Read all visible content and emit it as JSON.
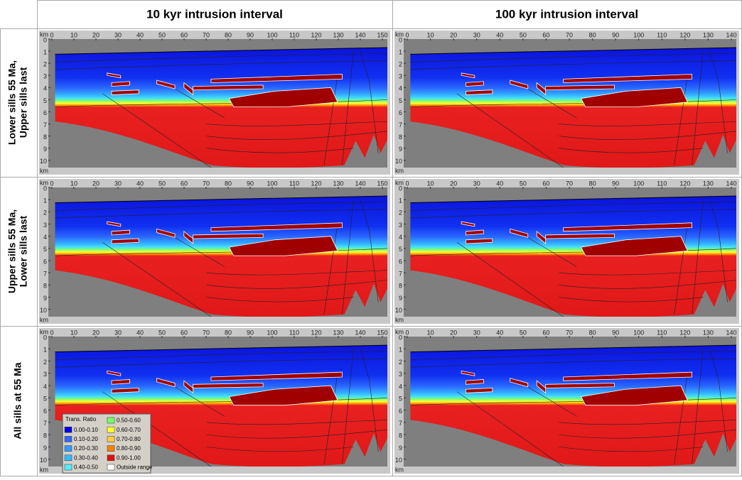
{
  "columns": [
    {
      "title": "10 kyr intrusion interval",
      "xticks": [
        0,
        10,
        20,
        30,
        40,
        50,
        60,
        70,
        80,
        90,
        100,
        110,
        120,
        130,
        140,
        150
      ]
    },
    {
      "title": "100 kyr intrusion interval",
      "xticks": [
        0,
        10,
        20,
        30,
        40,
        50,
        60,
        70,
        80,
        90,
        100,
        110,
        120,
        130,
        140
      ]
    }
  ],
  "rows": [
    {
      "label_lines": [
        "Lower sills 55 Ma,",
        "Upper sills last"
      ]
    },
    {
      "label_lines": [
        "Upper sills 55 Ma,",
        "Lower sills last"
      ]
    },
    {
      "label_lines": [
        "All sills at 55 Ma"
      ]
    }
  ],
  "yticks": [
    0,
    1,
    2,
    3,
    4,
    5,
    6,
    7,
    8,
    9,
    10
  ],
  "unit": "km",
  "legend": {
    "title": "Trans. Ratio",
    "items": [
      {
        "label": "0.00-0.10",
        "color": "#0000e0"
      },
      {
        "label": "0.10-0.20",
        "color": "#3366ff"
      },
      {
        "label": "0.20-0.30",
        "color": "#3399ff"
      },
      {
        "label": "0.30-0.40",
        "color": "#33bbff"
      },
      {
        "label": "0.40-0.50",
        "color": "#55eeff"
      },
      {
        "label": "0.50-0.60",
        "color": "#77ff66"
      },
      {
        "label": "0.60-0.70",
        "color": "#ffff33"
      },
      {
        "label": "0.70-0.80",
        "color": "#ffcc44"
      },
      {
        "label": "0.80-0.90",
        "color": "#ff8000"
      },
      {
        "label": "0.90-1.00",
        "color": "#e01010"
      },
      {
        "label": "Outside range",
        "color": "#ffffff"
      }
    ]
  }
}
